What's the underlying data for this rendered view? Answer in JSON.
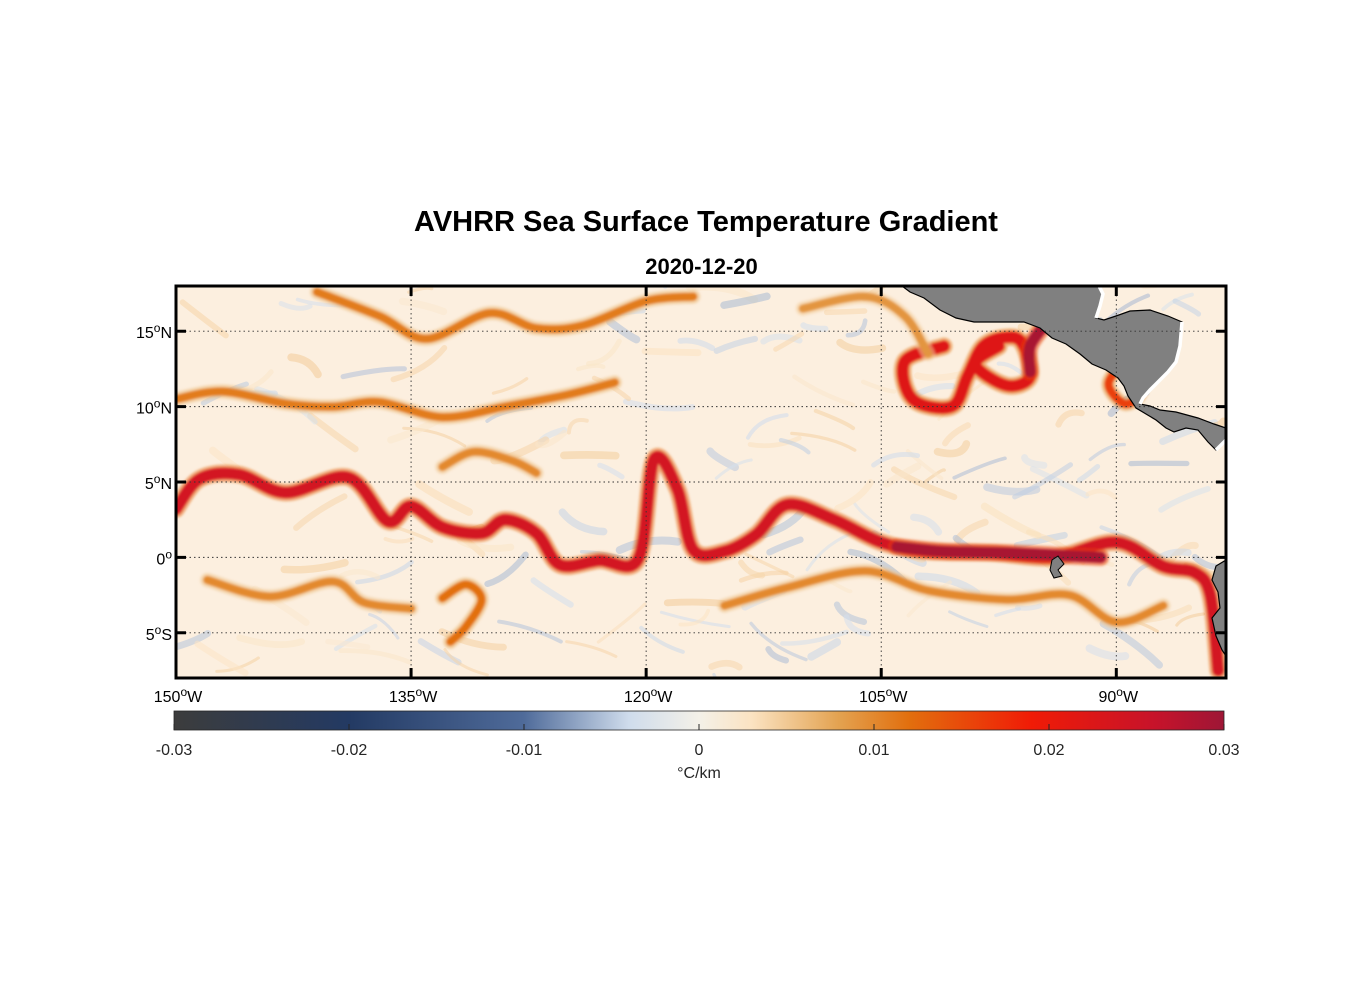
{
  "title": "AVHRR Sea Surface Temperature Gradient",
  "subtitle": "2020-12-20",
  "map": {
    "lon_range": [
      -150,
      -83
    ],
    "lat_range": [
      -8,
      18
    ],
    "lon_ticks": [
      {
        "value": -150,
        "num": "150",
        "dir": "W"
      },
      {
        "value": -135,
        "num": "135",
        "dir": "W"
      },
      {
        "value": -120,
        "num": "120",
        "dir": "W"
      },
      {
        "value": -105,
        "num": "105",
        "dir": "W"
      },
      {
        "value": -90,
        "num": "90",
        "dir": "W"
      }
    ],
    "lat_ticks": [
      {
        "value": 15,
        "num": "15",
        "dir": "N"
      },
      {
        "value": 10,
        "num": "10",
        "dir": "N"
      },
      {
        "value": 5,
        "num": "5",
        "dir": "N"
      },
      {
        "value": 0,
        "num": "0",
        "dir": ""
      },
      {
        "value": -5,
        "num": "5",
        "dir": "S"
      }
    ],
    "degree_symbol": "o",
    "grid": "dotted",
    "land_color": "#808080",
    "background_color": "#fcefdf"
  },
  "colorbar": {
    "ticks": [
      "-0.03",
      "-0.02",
      "-0.01",
      "0",
      "0.01",
      "0.02",
      "0.03"
    ],
    "range": [
      -0.03,
      0.03
    ],
    "label": "°C/km",
    "stops": [
      {
        "value": -0.03,
        "color": "#3c3c3c"
      },
      {
        "value": -0.02,
        "color": "#233a63"
      },
      {
        "value": -0.01,
        "color": "#4f6b9a"
      },
      {
        "value": -0.004,
        "color": "#cfdcec"
      },
      {
        "value": 0,
        "color": "#f4f1e8"
      },
      {
        "value": 0.003,
        "color": "#fbe3c2"
      },
      {
        "value": 0.008,
        "color": "#e3a250"
      },
      {
        "value": 0.012,
        "color": "#e26f0e"
      },
      {
        "value": 0.019,
        "color": "#f01b06"
      },
      {
        "value": 0.026,
        "color": "#c7132a"
      },
      {
        "value": 0.03,
        "color": "#9e1636"
      }
    ]
  },
  "gradient_features": [
    {
      "name": "equatorial front",
      "value": 0.024,
      "points": [
        [
          -150,
          3.2
        ],
        [
          -148.5,
          5.2
        ],
        [
          -146,
          5.5
        ],
        [
          -143,
          4.3
        ],
        [
          -139,
          5.3
        ],
        [
          -136.5,
          2.4
        ],
        [
          -135,
          3.4
        ],
        [
          -133,
          2.0
        ],
        [
          -130.5,
          1.6
        ],
        [
          -129,
          2.5
        ],
        [
          -127,
          1.6
        ],
        [
          -125.5,
          -0.5
        ],
        [
          -123,
          -0.2
        ],
        [
          -120.5,
          -0.1
        ],
        [
          -119.5,
          6.5
        ],
        [
          -118,
          4.5
        ],
        [
          -117,
          0.5
        ],
        [
          -115,
          0.4
        ],
        [
          -113,
          1.5
        ],
        [
          -111,
          3.5
        ],
        [
          -108,
          2.5
        ],
        [
          -105,
          1.0
        ],
        [
          -102,
          0.4
        ],
        [
          -98,
          0.3
        ],
        [
          -94,
          0.0
        ],
        [
          -90,
          1.0
        ],
        [
          -87,
          -0.6
        ],
        [
          -85,
          -1.0
        ],
        [
          -84,
          -2.5
        ],
        [
          -83.5,
          -7.5
        ]
      ]
    },
    {
      "name": "equatorial core",
      "value": 0.029,
      "points": [
        [
          -104,
          0.7
        ],
        [
          -101,
          0.4
        ],
        [
          -97,
          0.3
        ],
        [
          -93,
          0.1
        ],
        [
          -91,
          0.0
        ]
      ]
    },
    {
      "name": "eddy loop",
      "value": 0.022,
      "points": [
        [
          -101,
          14.0
        ],
        [
          -103.5,
          13.0
        ],
        [
          -103,
          10.5
        ],
        [
          -100.5,
          10.0
        ],
        [
          -99.5,
          12.0
        ],
        [
          -98.5,
          14.0
        ],
        [
          -97,
          14.6
        ],
        [
          -96,
          14.2
        ],
        [
          -95.5,
          12.0
        ],
        [
          -97,
          11.4
        ],
        [
          -99,
          12.8
        ],
        [
          -97.5,
          14.0
        ]
      ]
    },
    {
      "name": "coastal jet",
      "value": 0.029,
      "points": [
        [
          -94.5,
          15.5
        ],
        [
          -95.5,
          14.0
        ],
        [
          -95.5,
          12.3
        ]
      ]
    },
    {
      "name": "gulf eddy",
      "value": 0.016,
      "points": [
        [
          -89.5,
          13.0
        ],
        [
          -90.5,
          11.5
        ],
        [
          -89.5,
          10.2
        ],
        [
          -88.5,
          10.8
        ],
        [
          -88.3,
          12.3
        ],
        [
          -89.2,
          13.0
        ]
      ]
    },
    {
      "name": "northern filament",
      "value": 0.011,
      "points": [
        [
          -150,
          10.5
        ],
        [
          -147,
          11.0
        ],
        [
          -143,
          10.2
        ],
        [
          -140,
          10.0
        ],
        [
          -137,
          10.3
        ],
        [
          -133,
          9.3
        ],
        [
          -129,
          10.0
        ],
        [
          -125,
          10.8
        ],
        [
          -122,
          11.6
        ]
      ]
    },
    {
      "name": "northern wave",
      "value": 0.011,
      "points": [
        [
          -141,
          17.6
        ],
        [
          -137,
          16.0
        ],
        [
          -134,
          14.5
        ],
        [
          -130,
          16.2
        ],
        [
          -127,
          15.2
        ],
        [
          -124,
          15.4
        ],
        [
          -120,
          17.0
        ],
        [
          -117,
          17.3
        ]
      ]
    },
    {
      "name": "tropical ribbon",
      "value": 0.01,
      "points": [
        [
          -133,
          6.0
        ],
        [
          -131,
          7.0
        ],
        [
          -128.5,
          6.4
        ],
        [
          -127,
          5.6
        ]
      ]
    },
    {
      "name": "southern arc",
      "value": 0.012,
      "points": [
        [
          -133,
          -2.7
        ],
        [
          -131.5,
          -1.8
        ],
        [
          -130.5,
          -2.8
        ],
        [
          -131.5,
          -4.6
        ],
        [
          -132.5,
          -5.6
        ]
      ]
    },
    {
      "name": "southern band",
      "value": 0.01,
      "points": [
        [
          -148,
          -1.5
        ],
        [
          -144,
          -2.6
        ],
        [
          -140,
          -1.6
        ],
        [
          -138,
          -3.0
        ],
        [
          -135,
          -3.4
        ]
      ]
    },
    {
      "name": "south filament",
      "value": 0.01,
      "points": [
        [
          -115,
          -3.2
        ],
        [
          -111,
          -2.0
        ],
        [
          -106,
          -0.9
        ],
        [
          -102,
          -2.2
        ],
        [
          -97,
          -2.8
        ],
        [
          -93,
          -2.5
        ],
        [
          -90,
          -4.3
        ],
        [
          -87,
          -3.2
        ]
      ]
    },
    {
      "name": "west north filament",
      "value": 0.009,
      "points": [
        [
          -110,
          16.5
        ],
        [
          -106,
          17.3
        ],
        [
          -103.5,
          16.0
        ],
        [
          -102,
          13.5
        ]
      ]
    }
  ]
}
